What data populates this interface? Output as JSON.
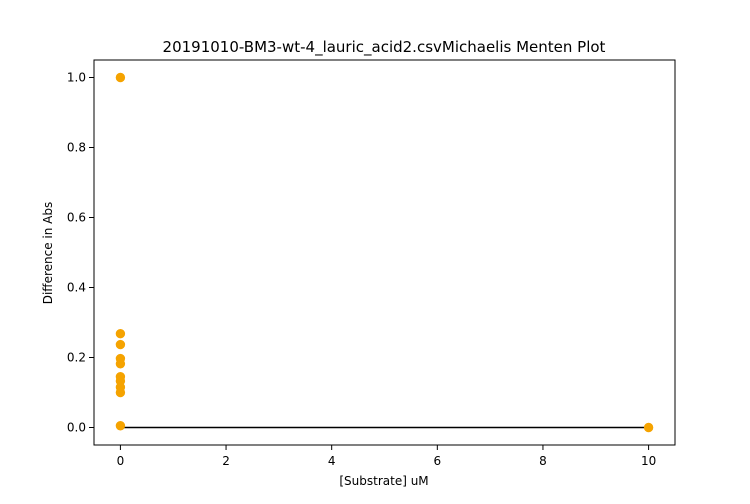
{
  "chart_data": {
    "type": "scatter",
    "title": "20191010-BM3-wt-4_lauric_acid2.csvMichaelis Menten Plot",
    "xlabel": "[Substrate] uM",
    "ylabel": "Difference in Abs",
    "xlim": [
      -0.5,
      10.5
    ],
    "ylim": [
      -0.05,
      1.05
    ],
    "x_ticks": [
      0,
      2,
      4,
      6,
      8,
      10
    ],
    "y_ticks": [
      0.0,
      0.2,
      0.4,
      0.6,
      0.8,
      1.0
    ],
    "x_tick_labels": [
      "0",
      "2",
      "4",
      "6",
      "8",
      "10"
    ],
    "y_tick_labels": [
      "0.0",
      "0.2",
      "0.4",
      "0.6",
      "0.8",
      "1.0"
    ],
    "grid": false,
    "series": [
      {
        "kind": "scatter",
        "color": "#f5a300",
        "points": [
          {
            "x": 0,
            "y": 1.0
          },
          {
            "x": 0,
            "y": 0.268
          },
          {
            "x": 0,
            "y": 0.237
          },
          {
            "x": 0,
            "y": 0.197
          },
          {
            "x": 0,
            "y": 0.182
          },
          {
            "x": 0,
            "y": 0.145
          },
          {
            "x": 0,
            "y": 0.133
          },
          {
            "x": 0,
            "y": 0.115
          },
          {
            "x": 0,
            "y": 0.1
          },
          {
            "x": 0,
            "y": 0.005
          },
          {
            "x": 10,
            "y": 0.0
          }
        ]
      },
      {
        "kind": "line",
        "color": "#000000",
        "points": [
          {
            "x": 0,
            "y": 0.0
          },
          {
            "x": 10,
            "y": 0.0
          }
        ]
      }
    ]
  }
}
